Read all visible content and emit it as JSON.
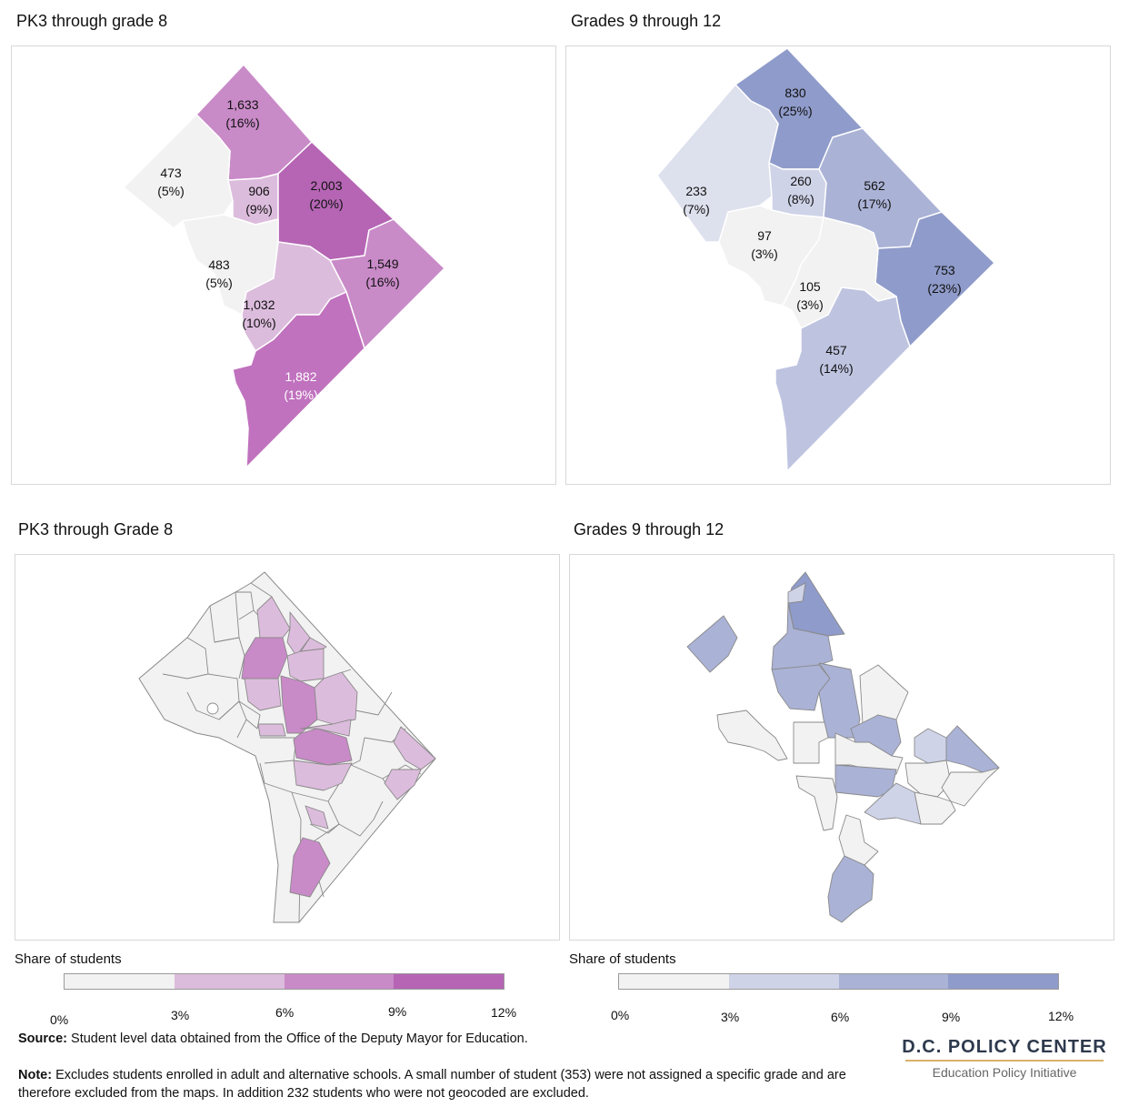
{
  "panels": {
    "top_left_title": "PK3 through grade 8",
    "top_right_title": "Grades 9 through 12",
    "bottom_left_title": "PK3 through Grade 8",
    "bottom_right_title": "Grades 9 through 12"
  },
  "top_left_labels": [
    {
      "count": "1,633",
      "pct": "(16%)"
    },
    {
      "count": "473",
      "pct": "(5%)"
    },
    {
      "count": "906",
      "pct": "(9%)"
    },
    {
      "count": "2,003",
      "pct": "(20%)"
    },
    {
      "count": "483",
      "pct": "(5%)"
    },
    {
      "count": "1,549",
      "pct": "(16%)"
    },
    {
      "count": "1,032",
      "pct": "(10%)"
    },
    {
      "count": "1,882",
      "pct": "(19%)"
    }
  ],
  "top_right_labels": [
    {
      "count": "830",
      "pct": "(25%)"
    },
    {
      "count": "233",
      "pct": "(7%)"
    },
    {
      "count": "260",
      "pct": "(8%)"
    },
    {
      "count": "562",
      "pct": "(17%)"
    },
    {
      "count": "97",
      "pct": "(3%)"
    },
    {
      "count": "753",
      "pct": "(23%)"
    },
    {
      "count": "105",
      "pct": "(3%)"
    },
    {
      "count": "457",
      "pct": "(14%)"
    }
  ],
  "legend": {
    "left_title": "Share of students",
    "right_title": "Share of students",
    "ticks": [
      "0%",
      "3%",
      "6%",
      "9%",
      "12%"
    ],
    "purple": [
      "#f2f2f2",
      "#dcbcdc",
      "#c98ac8",
      "#b565b4"
    ],
    "blue": [
      "#f2f2f2",
      "#cfd3e8",
      "#aab2d6",
      "#8f9bca"
    ]
  },
  "footer": {
    "source_label": "Source:",
    "source_text": " Student level data obtained from the Office of the Deputy Mayor for Education.",
    "note_label": "Note:",
    "note_text": " Excludes students enrolled in adult and alternative schools. A small number of student (353) were not assigned a specific grade and are therefore excluded from the maps. In addition 232 students who were not geocoded are excluded."
  },
  "brand": {
    "name": "D.C. POLICY CENTER",
    "subtitle": "Education Policy Initiative"
  }
}
